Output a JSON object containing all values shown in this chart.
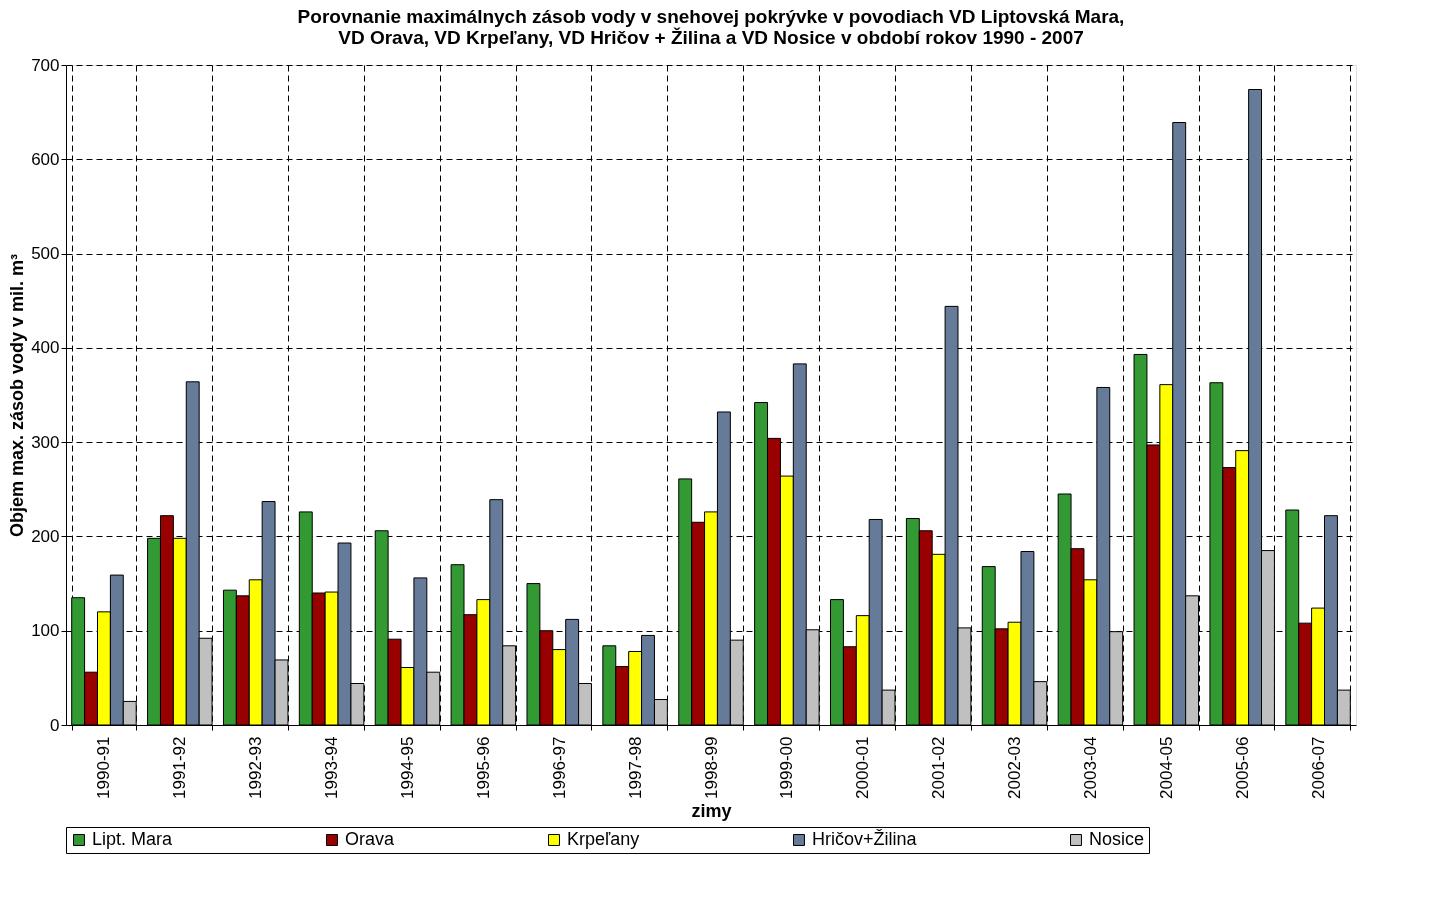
{
  "chart_data": {
    "type": "bar",
    "title": "Porovnanie maximálnych zásob vody v snehovej pokrývke v povodiach VD Liptovská Mara,\nVD Orava, VD Krpeľany, VD Hričov + Žilina a VD Nosice v období rokov 1990 - 2007",
    "xlabel": "zimy",
    "ylabel": "Objem max. zásob vody v mil. m³",
    "categories": [
      "1990-91",
      "1991-92",
      "1992-93",
      "1993-94",
      "1994-95",
      "1995-96",
      "1996-97",
      "1997-98",
      "1998-99",
      "1999-00",
      "2000-01",
      "2001-02",
      "2002-03",
      "2003-04",
      "2004-05",
      "2005-06",
      "2006-07"
    ],
    "series": [
      {
        "name": "Lipt. Mara",
        "color": "#339933",
        "values": [
          135,
          198,
          143,
          226,
          206,
          170,
          150,
          84,
          261,
          342,
          133,
          219,
          168,
          245,
          393,
          363,
          228
        ]
      },
      {
        "name": "Orava",
        "color": "#990000",
        "values": [
          56,
          222,
          137,
          140,
          91,
          117,
          100,
          62,
          215,
          304,
          83,
          206,
          102,
          187,
          297,
          273,
          108
        ]
      },
      {
        "name": "Krpeľany",
        "color": "#ffff00",
        "values": [
          120,
          198,
          154,
          141,
          61,
          133,
          80,
          78,
          226,
          264,
          116,
          181,
          109,
          154,
          361,
          291,
          124
        ]
      },
      {
        "name": "Hričov+Žilina",
        "color": "#667b99",
        "values": [
          159,
          364,
          237,
          193,
          156,
          239,
          112,
          95,
          332,
          383,
          218,
          444,
          184,
          358,
          639,
          674,
          222
        ]
      },
      {
        "name": "Nosice",
        "color": "#c0c0c0",
        "values": [
          25,
          92,
          69,
          44,
          56,
          84,
          44,
          27,
          90,
          101,
          37,
          103,
          46,
          99,
          137,
          185,
          37
        ]
      }
    ],
    "ylim": [
      0,
      700
    ],
    "yticks": [
      0,
      100,
      200,
      300,
      400,
      500,
      600,
      700
    ],
    "grid": true,
    "legend": "bottom"
  }
}
